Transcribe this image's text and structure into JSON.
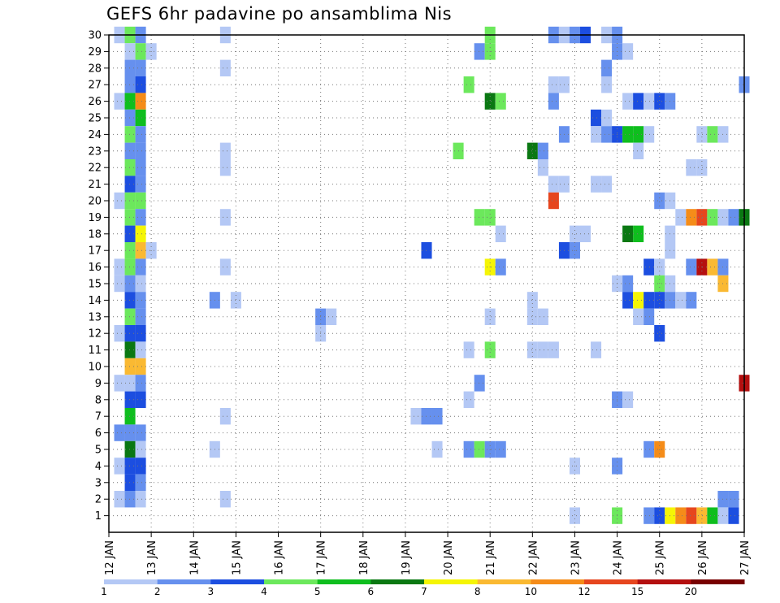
{
  "chart_data": {
    "type": "heatmap",
    "title": "GEFS 6hr padavine po ansamblima Nis",
    "xlabel": "",
    "ylabel": "",
    "x_ticks": [
      "12 JAN",
      "13 JAN",
      "14 JAN",
      "15 JAN",
      "16 JAN",
      "17 JAN",
      "18 JAN",
      "19 JAN",
      "20 JAN",
      "21 JAN",
      "22 JAN",
      "23 JAN",
      "24 JAN",
      "25 JAN",
      "26 JAN",
      "27 JAN"
    ],
    "y_ticks": [
      "1",
      "2",
      "3",
      "4",
      "5",
      "6",
      "7",
      "8",
      "9",
      "10",
      "11",
      "12",
      "13",
      "14",
      "15",
      "16",
      "17",
      "18",
      "19",
      "20",
      "21",
      "22",
      "23",
      "24",
      "25",
      "26",
      "27",
      "28",
      "29",
      "30"
    ],
    "xlim_days": [
      12,
      27
    ],
    "ylim_members": [
      0,
      30
    ],
    "grid": true,
    "colorbar": {
      "labels": [
        "1",
        "2",
        "3",
        "4",
        "5",
        "6",
        "7",
        "8",
        "10",
        "12",
        "15",
        "20"
      ],
      "colors": [
        "#b4c8f5",
        "#6690ee",
        "#1c4ee0",
        "#6ce85c",
        "#0fbe1e",
        "#0a7812",
        "#f5f505",
        "#fab932",
        "#f58c19",
        "#e6461e",
        "#b40f0f",
        "#780000"
      ]
    },
    "cells": [
      {
        "day": 12.25,
        "member": 30,
        "bin": 1
      },
      {
        "day": 12.5,
        "member": 30,
        "bin": 4
      },
      {
        "day": 12.75,
        "member": 30,
        "bin": 2
      },
      {
        "day": 14.75,
        "member": 30,
        "bin": 1
      },
      {
        "day": 21.0,
        "member": 30,
        "bin": 4
      },
      {
        "day": 22.5,
        "member": 30,
        "bin": 2
      },
      {
        "day": 22.75,
        "member": 30,
        "bin": 1
      },
      {
        "day": 23.0,
        "member": 30,
        "bin": 2
      },
      {
        "day": 23.25,
        "member": 30,
        "bin": 3
      },
      {
        "day": 23.75,
        "member": 30,
        "bin": 1
      },
      {
        "day": 24.0,
        "member": 30,
        "bin": 2
      },
      {
        "day": 12.5,
        "member": 29,
        "bin": 1
      },
      {
        "day": 12.75,
        "member": 29,
        "bin": 4
      },
      {
        "day": 13.0,
        "member": 29,
        "bin": 1
      },
      {
        "day": 20.75,
        "member": 29,
        "bin": 2
      },
      {
        "day": 21.0,
        "member": 29,
        "bin": 4
      },
      {
        "day": 24.0,
        "member": 29,
        "bin": 2
      },
      {
        "day": 24.25,
        "member": 29,
        "bin": 1
      },
      {
        "day": 12.5,
        "member": 28,
        "bin": 2
      },
      {
        "day": 12.75,
        "member": 28,
        "bin": 2
      },
      {
        "day": 14.75,
        "member": 28,
        "bin": 1
      },
      {
        "day": 23.75,
        "member": 28,
        "bin": 2
      },
      {
        "day": 12.5,
        "member": 27,
        "bin": 2
      },
      {
        "day": 12.75,
        "member": 27,
        "bin": 3
      },
      {
        "day": 20.5,
        "member": 27,
        "bin": 4
      },
      {
        "day": 22.5,
        "member": 27,
        "bin": 1
      },
      {
        "day": 22.75,
        "member": 27,
        "bin": 1
      },
      {
        "day": 23.75,
        "member": 27,
        "bin": 1
      },
      {
        "day": 27.0,
        "member": 27,
        "bin": 2
      },
      {
        "day": 12.25,
        "member": 26,
        "bin": 1
      },
      {
        "day": 12.5,
        "member": 26,
        "bin": 5
      },
      {
        "day": 12.75,
        "member": 26,
        "bin": 9
      },
      {
        "day": 21.0,
        "member": 26,
        "bin": 6
      },
      {
        "day": 21.25,
        "member": 26,
        "bin": 4
      },
      {
        "day": 22.5,
        "member": 26,
        "bin": 2
      },
      {
        "day": 24.25,
        "member": 26,
        "bin": 1
      },
      {
        "day": 24.5,
        "member": 26,
        "bin": 3
      },
      {
        "day": 24.75,
        "member": 26,
        "bin": 1
      },
      {
        "day": 25.0,
        "member": 26,
        "bin": 3
      },
      {
        "day": 25.25,
        "member": 26,
        "bin": 2
      },
      {
        "day": 12.5,
        "member": 25,
        "bin": 2
      },
      {
        "day": 12.75,
        "member": 25,
        "bin": 5
      },
      {
        "day": 23.5,
        "member": 25,
        "bin": 3
      },
      {
        "day": 23.75,
        "member": 25,
        "bin": 1
      },
      {
        "day": 12.5,
        "member": 24,
        "bin": 4
      },
      {
        "day": 12.75,
        "member": 24,
        "bin": 2
      },
      {
        "day": 22.75,
        "member": 24,
        "bin": 2
      },
      {
        "day": 23.5,
        "member": 24,
        "bin": 1
      },
      {
        "day": 23.75,
        "member": 24,
        "bin": 2
      },
      {
        "day": 24.0,
        "member": 24,
        "bin": 3
      },
      {
        "day": 24.25,
        "member": 24,
        "bin": 5
      },
      {
        "day": 24.5,
        "member": 24,
        "bin": 5
      },
      {
        "day": 24.75,
        "member": 24,
        "bin": 1
      },
      {
        "day": 26.0,
        "member": 24,
        "bin": 1
      },
      {
        "day": 26.25,
        "member": 24,
        "bin": 4
      },
      {
        "day": 26.5,
        "member": 24,
        "bin": 1
      },
      {
        "day": 12.5,
        "member": 23,
        "bin": 2
      },
      {
        "day": 12.75,
        "member": 23,
        "bin": 2
      },
      {
        "day": 14.75,
        "member": 23,
        "bin": 1
      },
      {
        "day": 20.25,
        "member": 23,
        "bin": 4
      },
      {
        "day": 22.0,
        "member": 23,
        "bin": 6
      },
      {
        "day": 22.25,
        "member": 23,
        "bin": 2
      },
      {
        "day": 24.5,
        "member": 23,
        "bin": 1
      },
      {
        "day": 12.5,
        "member": 22,
        "bin": 4
      },
      {
        "day": 12.75,
        "member": 22,
        "bin": 2
      },
      {
        "day": 14.75,
        "member": 22,
        "bin": 1
      },
      {
        "day": 22.25,
        "member": 22,
        "bin": 1
      },
      {
        "day": 25.75,
        "member": 22,
        "bin": 1
      },
      {
        "day": 26.0,
        "member": 22,
        "bin": 1
      },
      {
        "day": 12.5,
        "member": 21,
        "bin": 3
      },
      {
        "day": 12.75,
        "member": 21,
        "bin": 2
      },
      {
        "day": 22.5,
        "member": 21,
        "bin": 1
      },
      {
        "day": 22.75,
        "member": 21,
        "bin": 1
      },
      {
        "day": 23.5,
        "member": 21,
        "bin": 1
      },
      {
        "day": 23.75,
        "member": 21,
        "bin": 1
      },
      {
        "day": 12.25,
        "member": 20,
        "bin": 1
      },
      {
        "day": 12.5,
        "member": 20,
        "bin": 4
      },
      {
        "day": 12.75,
        "member": 20,
        "bin": 4
      },
      {
        "day": 22.5,
        "member": 20,
        "bin": 10
      },
      {
        "day": 25.0,
        "member": 20,
        "bin": 2
      },
      {
        "day": 25.25,
        "member": 20,
        "bin": 1
      },
      {
        "day": 12.5,
        "member": 19,
        "bin": 4
      },
      {
        "day": 12.75,
        "member": 19,
        "bin": 2
      },
      {
        "day": 14.75,
        "member": 19,
        "bin": 1
      },
      {
        "day": 20.75,
        "member": 19,
        "bin": 4
      },
      {
        "day": 21.0,
        "member": 19,
        "bin": 4
      },
      {
        "day": 25.5,
        "member": 19,
        "bin": 1
      },
      {
        "day": 25.75,
        "member": 19,
        "bin": 9
      },
      {
        "day": 26.0,
        "member": 19,
        "bin": 10
      },
      {
        "day": 26.25,
        "member": 19,
        "bin": 4
      },
      {
        "day": 26.5,
        "member": 19,
        "bin": 1
      },
      {
        "day": 26.75,
        "member": 19,
        "bin": 2
      },
      {
        "day": 27.0,
        "member": 19,
        "bin": 6
      },
      {
        "day": 12.5,
        "member": 18,
        "bin": 3
      },
      {
        "day": 12.75,
        "member": 18,
        "bin": 7
      },
      {
        "day": 21.25,
        "member": 18,
        "bin": 1
      },
      {
        "day": 23.0,
        "member": 18,
        "bin": 1
      },
      {
        "day": 23.25,
        "member": 18,
        "bin": 1
      },
      {
        "day": 24.25,
        "member": 18,
        "bin": 6
      },
      {
        "day": 24.5,
        "member": 18,
        "bin": 5
      },
      {
        "day": 25.25,
        "member": 18,
        "bin": 1
      },
      {
        "day": 12.5,
        "member": 17,
        "bin": 4
      },
      {
        "day": 12.75,
        "member": 17,
        "bin": 8
      },
      {
        "day": 13.0,
        "member": 17,
        "bin": 1
      },
      {
        "day": 19.5,
        "member": 17,
        "bin": 3
      },
      {
        "day": 22.75,
        "member": 17,
        "bin": 3
      },
      {
        "day": 23.0,
        "member": 17,
        "bin": 2
      },
      {
        "day": 25.25,
        "member": 17,
        "bin": 1
      },
      {
        "day": 12.25,
        "member": 16,
        "bin": 1
      },
      {
        "day": 12.5,
        "member": 16,
        "bin": 4
      },
      {
        "day": 12.75,
        "member": 16,
        "bin": 2
      },
      {
        "day": 14.75,
        "member": 16,
        "bin": 1
      },
      {
        "day": 21.0,
        "member": 16,
        "bin": 7
      },
      {
        "day": 21.25,
        "member": 16,
        "bin": 2
      },
      {
        "day": 24.75,
        "member": 16,
        "bin": 3
      },
      {
        "day": 25.0,
        "member": 16,
        "bin": 1
      },
      {
        "day": 25.75,
        "member": 16,
        "bin": 2
      },
      {
        "day": 26.0,
        "member": 16,
        "bin": 11
      },
      {
        "day": 26.25,
        "member": 16,
        "bin": 8
      },
      {
        "day": 26.5,
        "member": 16,
        "bin": 2
      },
      {
        "day": 12.25,
        "member": 15,
        "bin": 1
      },
      {
        "day": 12.5,
        "member": 15,
        "bin": 2
      },
      {
        "day": 12.75,
        "member": 15,
        "bin": 1
      },
      {
        "day": 24.0,
        "member": 15,
        "bin": 1
      },
      {
        "day": 24.25,
        "member": 15,
        "bin": 2
      },
      {
        "day": 25.0,
        "member": 15,
        "bin": 4
      },
      {
        "day": 25.25,
        "member": 15,
        "bin": 1
      },
      {
        "day": 26.5,
        "member": 15,
        "bin": 8
      },
      {
        "day": 12.5,
        "member": 14,
        "bin": 3
      },
      {
        "day": 12.75,
        "member": 14,
        "bin": 2
      },
      {
        "day": 14.5,
        "member": 14,
        "bin": 2
      },
      {
        "day": 15.0,
        "member": 14,
        "bin": 1
      },
      {
        "day": 22.0,
        "member": 14,
        "bin": 1
      },
      {
        "day": 24.25,
        "member": 14,
        "bin": 3
      },
      {
        "day": 24.5,
        "member": 14,
        "bin": 7
      },
      {
        "day": 24.75,
        "member": 14,
        "bin": 3
      },
      {
        "day": 25.0,
        "member": 14,
        "bin": 3
      },
      {
        "day": 25.25,
        "member": 14,
        "bin": 2
      },
      {
        "day": 25.5,
        "member": 14,
        "bin": 1
      },
      {
        "day": 25.75,
        "member": 14,
        "bin": 2
      },
      {
        "day": 12.5,
        "member": 13,
        "bin": 4
      },
      {
        "day": 12.75,
        "member": 13,
        "bin": 2
      },
      {
        "day": 17.0,
        "member": 13,
        "bin": 2
      },
      {
        "day": 17.25,
        "member": 13,
        "bin": 1
      },
      {
        "day": 21.0,
        "member": 13,
        "bin": 1
      },
      {
        "day": 22.0,
        "member": 13,
        "bin": 1
      },
      {
        "day": 22.25,
        "member": 13,
        "bin": 1
      },
      {
        "day": 24.5,
        "member": 13,
        "bin": 1
      },
      {
        "day": 24.75,
        "member": 13,
        "bin": 2
      },
      {
        "day": 12.25,
        "member": 12,
        "bin": 1
      },
      {
        "day": 12.5,
        "member": 12,
        "bin": 3
      },
      {
        "day": 12.75,
        "member": 12,
        "bin": 3
      },
      {
        "day": 17.0,
        "member": 12,
        "bin": 1
      },
      {
        "day": 25.0,
        "member": 12,
        "bin": 3
      },
      {
        "day": 12.5,
        "member": 11,
        "bin": 6
      },
      {
        "day": 12.75,
        "member": 11,
        "bin": 1
      },
      {
        "day": 20.5,
        "member": 11,
        "bin": 1
      },
      {
        "day": 21.0,
        "member": 11,
        "bin": 4
      },
      {
        "day": 22.0,
        "member": 11,
        "bin": 1
      },
      {
        "day": 22.25,
        "member": 11,
        "bin": 1
      },
      {
        "day": 22.5,
        "member": 11,
        "bin": 1
      },
      {
        "day": 23.5,
        "member": 11,
        "bin": 1
      },
      {
        "day": 12.5,
        "member": 10,
        "bin": 8
      },
      {
        "day": 12.75,
        "member": 10,
        "bin": 8
      },
      {
        "day": 12.25,
        "member": 9,
        "bin": 1
      },
      {
        "day": 12.5,
        "member": 9,
        "bin": 1
      },
      {
        "day": 12.75,
        "member": 9,
        "bin": 2
      },
      {
        "day": 20.75,
        "member": 9,
        "bin": 2
      },
      {
        "day": 27.0,
        "member": 9,
        "bin": 11
      },
      {
        "day": 12.5,
        "member": 8,
        "bin": 3
      },
      {
        "day": 12.75,
        "member": 8,
        "bin": 3
      },
      {
        "day": 20.5,
        "member": 8,
        "bin": 1
      },
      {
        "day": 24.0,
        "member": 8,
        "bin": 2
      },
      {
        "day": 24.25,
        "member": 8,
        "bin": 1
      },
      {
        "day": 12.5,
        "member": 7,
        "bin": 5
      },
      {
        "day": 14.75,
        "member": 7,
        "bin": 1
      },
      {
        "day": 19.25,
        "member": 7,
        "bin": 1
      },
      {
        "day": 19.5,
        "member": 7,
        "bin": 2
      },
      {
        "day": 19.75,
        "member": 7,
        "bin": 2
      },
      {
        "day": 12.25,
        "member": 6,
        "bin": 2
      },
      {
        "day": 12.5,
        "member": 6,
        "bin": 2
      },
      {
        "day": 12.75,
        "member": 6,
        "bin": 2
      },
      {
        "day": 12.5,
        "member": 5,
        "bin": 6
      },
      {
        "day": 12.75,
        "member": 5,
        "bin": 1
      },
      {
        "day": 14.5,
        "member": 5,
        "bin": 1
      },
      {
        "day": 19.75,
        "member": 5,
        "bin": 1
      },
      {
        "day": 20.5,
        "member": 5,
        "bin": 2
      },
      {
        "day": 20.75,
        "member": 5,
        "bin": 4
      },
      {
        "day": 21.0,
        "member": 5,
        "bin": 2
      },
      {
        "day": 21.25,
        "member": 5,
        "bin": 2
      },
      {
        "day": 24.75,
        "member": 5,
        "bin": 2
      },
      {
        "day": 25.0,
        "member": 5,
        "bin": 9
      },
      {
        "day": 12.25,
        "member": 4,
        "bin": 1
      },
      {
        "day": 12.5,
        "member": 4,
        "bin": 3
      },
      {
        "day": 12.75,
        "member": 4,
        "bin": 3
      },
      {
        "day": 23.0,
        "member": 4,
        "bin": 1
      },
      {
        "day": 24.0,
        "member": 4,
        "bin": 2
      },
      {
        "day": 12.5,
        "member": 3,
        "bin": 3
      },
      {
        "day": 12.75,
        "member": 3,
        "bin": 2
      },
      {
        "day": 12.25,
        "member": 2,
        "bin": 1
      },
      {
        "day": 12.5,
        "member": 2,
        "bin": 2
      },
      {
        "day": 12.75,
        "member": 2,
        "bin": 1
      },
      {
        "day": 14.75,
        "member": 2,
        "bin": 1
      },
      {
        "day": 26.5,
        "member": 2,
        "bin": 2
      },
      {
        "day": 26.75,
        "member": 2,
        "bin": 2
      },
      {
        "day": 23.0,
        "member": 1,
        "bin": 1
      },
      {
        "day": 24.0,
        "member": 1,
        "bin": 4
      },
      {
        "day": 24.75,
        "member": 1,
        "bin": 2
      },
      {
        "day": 25.0,
        "member": 1,
        "bin": 3
      },
      {
        "day": 25.25,
        "member": 1,
        "bin": 7
      },
      {
        "day": 25.5,
        "member": 1,
        "bin": 9
      },
      {
        "day": 25.75,
        "member": 1,
        "bin": 10
      },
      {
        "day": 26.0,
        "member": 1,
        "bin": 8
      },
      {
        "day": 26.25,
        "member": 1,
        "bin": 5
      },
      {
        "day": 26.5,
        "member": 1,
        "bin": 1
      },
      {
        "day": 26.75,
        "member": 1,
        "bin": 3
      }
    ]
  }
}
